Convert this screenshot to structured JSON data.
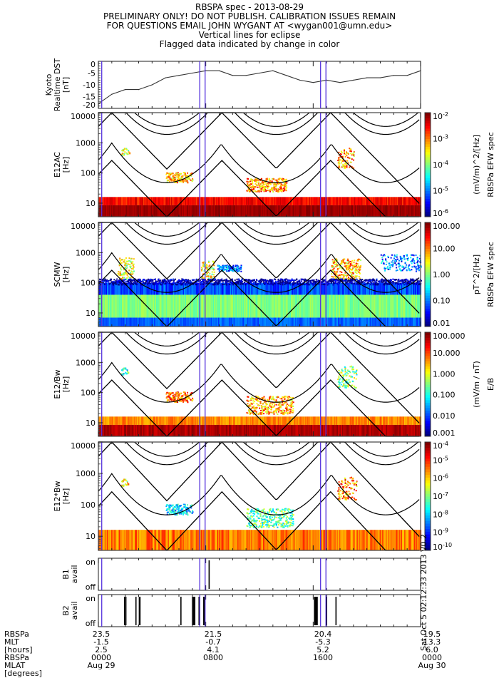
{
  "header": {
    "title": "RBSPA spec - 2013-08-29",
    "lines": [
      "PRELIMINARY ONLY! DO NOT PUBLISH. CALIBRATION ISSUES REMAIN",
      "FOR QUESTIONS EMAIL JOHN WYGANT AT <wygan001@umn.edu>",
      "Vertical lines for eclipse",
      "Flagged data indicated by change in color"
    ]
  },
  "stamp": "Sat Oct 5 02:12:33 2013 V0.2",
  "eclipse_lines_hours": [
    0.25,
    7.55,
    7.95,
    16.55,
    16.95
  ],
  "chart_data": [
    {
      "type": "line",
      "name": "dst",
      "ylabel": [
        "Kyoto",
        "Realtime DST",
        "[nT]"
      ],
      "ylim": [
        -20,
        0
      ],
      "yticks": [
        "0",
        "-5",
        "-10",
        "-15",
        "-20"
      ],
      "x_hours": [
        0,
        1,
        2,
        3,
        4,
        5,
        6,
        7,
        8,
        9,
        10,
        11,
        12,
        13,
        14,
        15,
        16,
        17,
        18,
        19,
        20,
        21,
        22,
        23,
        24
      ],
      "values": [
        -18,
        -14,
        -12,
        -12,
        -10,
        -7,
        -6,
        -5,
        -4,
        -4,
        -6,
        -6,
        -5,
        -4,
        -6,
        -8,
        -9,
        -8,
        -9,
        -8,
        -7,
        -7,
        -6,
        -6,
        -4
      ]
    },
    {
      "type": "heatmap",
      "name": "e12ac",
      "ylabel": [
        "E12AC",
        "[Hz]"
      ],
      "yticks": [
        "10000",
        "1000",
        "100",
        "10"
      ],
      "colorbar": {
        "ticks": [
          "10^-2",
          "10^-3",
          "10^-4",
          "10^-5",
          "10^-6"
        ],
        "label": "(mV/m)^2/[Hz]",
        "label2": "RBSPa EFW spec"
      }
    },
    {
      "type": "heatmap",
      "name": "scmw",
      "ylabel": [
        "SCMW",
        "[Hz]"
      ],
      "yticks": [
        "10000",
        "1000",
        "100",
        "10"
      ],
      "colorbar": {
        "ticks": [
          "100.00",
          "10.00",
          "1.00",
          "0.10",
          "0.01"
        ],
        "label": "pT^2/[Hz]",
        "label2": "RBSPa EFW spec"
      }
    },
    {
      "type": "heatmap",
      "name": "e12-over-bw",
      "ylabel": [
        "E12/Bw",
        "[Hz]"
      ],
      "yticks": [
        "10000",
        "1000",
        "100",
        "10"
      ],
      "colorbar": {
        "ticks": [
          "100.000",
          "10.000",
          "1.000",
          "0.100",
          "0.010",
          "0.001"
        ],
        "label": "(mV/m / nT)",
        "label2": "E/B"
      }
    },
    {
      "type": "heatmap",
      "name": "e12-times-bw",
      "ylabel": [
        "E12*Bw",
        "[Hz]"
      ],
      "yticks": [
        "10000",
        "1000",
        "100",
        "10"
      ],
      "colorbar": {
        "ticks": [
          "10^-4",
          "10^-5",
          "10^-6",
          "10^-7",
          "10^-8",
          "10^-9",
          "10^-10"
        ],
        "label": "",
        "label2": ""
      }
    },
    {
      "type": "bar",
      "name": "b1-avail",
      "ylabel": [
        "B1",
        "avail"
      ],
      "yticks": [
        "on",
        "off"
      ],
      "on_hours": [
        8.25
      ]
    },
    {
      "type": "bar",
      "name": "b2-avail",
      "ylabel": [
        "B2",
        "avail"
      ],
      "yticks": [
        "on",
        "off"
      ],
      "on_hours": [
        1.95,
        2.05,
        2.8,
        3.05,
        3.1,
        6.15,
        7.0,
        7.1,
        7.12,
        7.15,
        7.18,
        7.5,
        7.85,
        7.88,
        16.1,
        16.15,
        16.2,
        16.23,
        16.25,
        16.3,
        17.0,
        17.7
      ]
    }
  ],
  "footer": {
    "labels": [
      "RBSPa",
      "MLT",
      "[hours]",
      "RBSPa",
      "MLAT",
      "[degrees]"
    ],
    "columns": [
      {
        "mlt1": "23.5",
        "mlt2": "-1.5",
        "l": "2.5",
        "time": "0000",
        "date": "Aug 29"
      },
      {
        "mlt1": "21.5",
        "mlt2": "-0.7",
        "l": "4.1",
        "time": "0800",
        "date": ""
      },
      {
        "mlt1": "20.4",
        "mlt2": "-5.3",
        "l": "5.2",
        "time": "1600",
        "date": ""
      },
      {
        "mlt1": "19.5",
        "mlt2": "13.3",
        "l": "6.0",
        "time": "0000",
        "date": "Aug 30"
      }
    ]
  }
}
